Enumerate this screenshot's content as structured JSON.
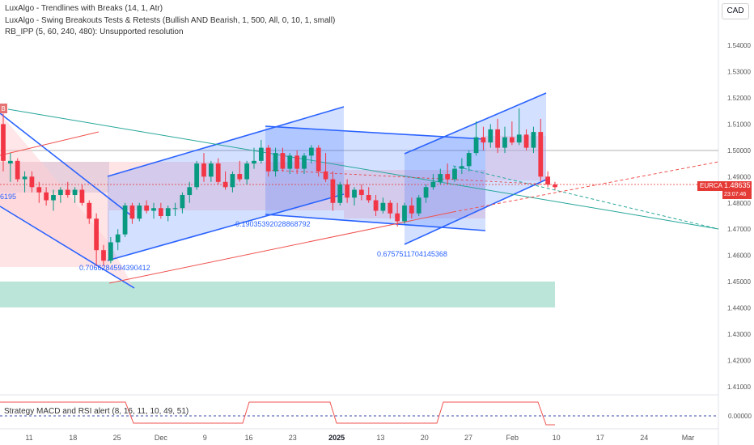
{
  "legend": [
    "LuxAlgo - Trendlines with Breaks (14, 1, Atr)",
    "LuxAlgo - Swing Breakouts Tests & Retests (Bullish AND Bearish, 1, 500, All, 0, 10, 1, small)",
    "RB_IPP (5, 60, 240, 480): Unsupported resolution"
  ],
  "sub_legend": "Strategy MACD and RSI alert (8, 16, 11, 10, 49, 51)",
  "currency": "CAD",
  "symbol_tag": "EURCAD",
  "price_tag": "1.48635",
  "price_timer": "23:07:46",
  "colors": {
    "up": "#089981",
    "down": "#f23645",
    "blue_channel": "#2962ff",
    "zone": "#8fd3c0"
  },
  "chart_data": {
    "type": "candlestick",
    "symbol": "EURCAD",
    "y_axis": {
      "ticks": [
        "1.54000",
        "1.53000",
        "1.52000",
        "1.51000",
        "1.50000",
        "1.49000",
        "1.48000",
        "1.47000",
        "1.46000",
        "1.45000",
        "1.44000",
        "1.43000",
        "1.42000",
        "1.41000"
      ],
      "range": [
        1.405,
        1.545
      ]
    },
    "x_axis": {
      "ticks": [
        "11",
        "18",
        "25",
        "Dec",
        "9",
        "16",
        "23",
        "2025",
        "13",
        "20",
        "27",
        "Feb",
        "10",
        "17",
        "24",
        "Mar"
      ]
    },
    "candles": [
      [
        1.51,
        1.514,
        1.492,
        1.496
      ],
      [
        1.495,
        1.499,
        1.488,
        1.496
      ],
      [
        1.496,
        1.497,
        1.488,
        1.489
      ],
      [
        1.489,
        1.492,
        1.484,
        1.49
      ],
      [
        1.49,
        1.492,
        1.484,
        1.486
      ],
      [
        1.486,
        1.488,
        1.48,
        1.484
      ],
      [
        1.484,
        1.486,
        1.479,
        1.481
      ],
      [
        1.481,
        1.485,
        1.477,
        1.483
      ],
      [
        1.483,
        1.486,
        1.48,
        1.485
      ],
      [
        1.485,
        1.488,
        1.482,
        1.483
      ],
      [
        1.483,
        1.486,
        1.48,
        1.485
      ],
      [
        1.485,
        1.487,
        1.479,
        1.48
      ],
      [
        1.48,
        1.481,
        1.472,
        1.474
      ],
      [
        1.474,
        1.476,
        1.456,
        1.462
      ],
      [
        1.462,
        1.464,
        1.456,
        1.458
      ],
      [
        1.458,
        1.467,
        1.457,
        1.465
      ],
      [
        1.465,
        1.47,
        1.462,
        1.468
      ],
      [
        1.468,
        1.48,
        1.467,
        1.479
      ],
      [
        1.479,
        1.48,
        1.472,
        1.474
      ],
      [
        1.474,
        1.48,
        1.473,
        1.479
      ],
      [
        1.479,
        1.481,
        1.476,
        1.477
      ],
      [
        1.477,
        1.48,
        1.474,
        1.478
      ],
      [
        1.478,
        1.48,
        1.474,
        1.475
      ],
      [
        1.475,
        1.479,
        1.473,
        1.478
      ],
      [
        1.478,
        1.48,
        1.475,
        1.478
      ],
      [
        1.478,
        1.484,
        1.476,
        1.483
      ],
      [
        1.483,
        1.488,
        1.48,
        1.486
      ],
      [
        1.486,
        1.496,
        1.485,
        1.495
      ],
      [
        1.495,
        1.499,
        1.488,
        1.49
      ],
      [
        1.49,
        1.496,
        1.488,
        1.495
      ],
      [
        1.495,
        1.497,
        1.487,
        1.488
      ],
      [
        1.488,
        1.492,
        1.485,
        1.486
      ],
      [
        1.486,
        1.492,
        1.484,
        1.491
      ],
      [
        1.491,
        1.496,
        1.488,
        1.489
      ],
      [
        1.489,
        1.496,
        1.487,
        1.495
      ],
      [
        1.495,
        1.501,
        1.493,
        1.496
      ],
      [
        1.496,
        1.504,
        1.495,
        1.501
      ],
      [
        1.501,
        1.502,
        1.49,
        1.492
      ],
      [
        1.492,
        1.501,
        1.49,
        1.499
      ],
      [
        1.499,
        1.501,
        1.492,
        1.493
      ],
      [
        1.493,
        1.499,
        1.491,
        1.498
      ],
      [
        1.498,
        1.5,
        1.491,
        1.493
      ],
      [
        1.493,
        1.499,
        1.491,
        1.498
      ],
      [
        1.498,
        1.502,
        1.495,
        1.501
      ],
      [
        1.501,
        1.502,
        1.49,
        1.492
      ],
      [
        1.492,
        1.499,
        1.488,
        1.489
      ],
      [
        1.489,
        1.492,
        1.477,
        1.48
      ],
      [
        1.48,
        1.488,
        1.479,
        1.487
      ],
      [
        1.487,
        1.489,
        1.48,
        1.482
      ],
      [
        1.482,
        1.486,
        1.479,
        1.485
      ],
      [
        1.485,
        1.487,
        1.481,
        1.483
      ],
      [
        1.483,
        1.486,
        1.48,
        1.481
      ],
      [
        1.481,
        1.483,
        1.475,
        1.477
      ],
      [
        1.477,
        1.482,
        1.476,
        1.48
      ],
      [
        1.48,
        1.481,
        1.474,
        1.476
      ],
      [
        1.476,
        1.48,
        1.471,
        1.473
      ],
      [
        1.473,
        1.48,
        1.472,
        1.479
      ],
      [
        1.479,
        1.482,
        1.474,
        1.476
      ],
      [
        1.476,
        1.483,
        1.475,
        1.482
      ],
      [
        1.482,
        1.487,
        1.48,
        1.486
      ],
      [
        1.486,
        1.491,
        1.485,
        1.488
      ],
      [
        1.488,
        1.493,
        1.487,
        1.491
      ],
      [
        1.491,
        1.495,
        1.487,
        1.489
      ],
      [
        1.489,
        1.494,
        1.488,
        1.493
      ],
      [
        1.493,
        1.497,
        1.491,
        1.494
      ],
      [
        1.494,
        1.5,
        1.492,
        1.499
      ],
      [
        1.499,
        1.511,
        1.498,
        1.505
      ],
      [
        1.505,
        1.509,
        1.5,
        1.503
      ],
      [
        1.503,
        1.51,
        1.501,
        1.508
      ],
      [
        1.508,
        1.512,
        1.499,
        1.501
      ],
      [
        1.501,
        1.509,
        1.499,
        1.505
      ],
      [
        1.505,
        1.511,
        1.502,
        1.503
      ],
      [
        1.503,
        1.516,
        1.502,
        1.506
      ],
      [
        1.506,
        1.508,
        1.5,
        1.501
      ],
      [
        1.501,
        1.509,
        1.499,
        1.507
      ],
      [
        1.507,
        1.512,
        1.488,
        1.49
      ],
      [
        1.49,
        1.492,
        1.486,
        1.487
      ],
      [
        1.487,
        1.488,
        1.485,
        1.486
      ]
    ],
    "annotations": [
      "0.7066284594390412",
      "0.19035392028868792",
      "0.6757511704145368",
      "6195",
      "B"
    ],
    "oscillator": {
      "tick": "0.00000"
    }
  }
}
